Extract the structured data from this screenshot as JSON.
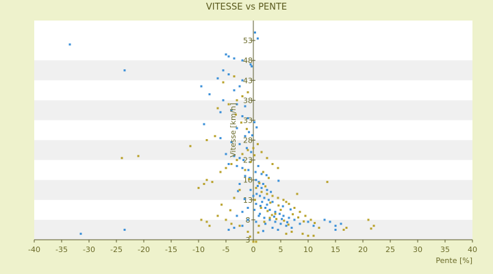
{
  "chart_data": {
    "type": "scatter",
    "title": "VITESSE vs PENTE",
    "xlabel": "Pente [%]",
    "ylabel": "Vitesse [km/h]",
    "xlim": [
      -40,
      40
    ],
    "ylim": [
      3,
      58
    ],
    "x_ticks": [
      "-40",
      "-35",
      "-30",
      "-25",
      "-20",
      "-15",
      "-10",
      "-5",
      "0",
      "5",
      "10",
      "15",
      "20",
      "25",
      "30",
      "35",
      "40"
    ],
    "y_ticks": [
      "3",
      "8",
      "13",
      "18",
      "23",
      "28",
      "33",
      "38",
      "43",
      "48",
      "53"
    ],
    "grid": "horizontal-bands",
    "legend": "none",
    "colors": {
      "series_a": "#3a8fd8",
      "series_b": "#b8a12a",
      "band": "#f0f0f0",
      "plot_bg": "#ffffff",
      "axis": "#5a5a2a"
    },
    "series": [
      {
        "color": "series_a",
        "points": [
          [
            -33.5,
            52
          ],
          [
            -23.5,
            45.5
          ],
          [
            -31.5,
            4.5
          ],
          [
            -23.5,
            5.5
          ],
          [
            -5,
            49.5
          ],
          [
            -4.5,
            49
          ],
          [
            -3.5,
            48.5
          ],
          [
            -2,
            48
          ],
          [
            -0.5,
            47
          ],
          [
            -0.3,
            46.5
          ],
          [
            0.3,
            55
          ],
          [
            0.8,
            53.5
          ],
          [
            -5.5,
            45.5
          ],
          [
            -4.5,
            44.5
          ],
          [
            -6.5,
            43.5
          ],
          [
            -2,
            43
          ],
          [
            -2.5,
            41.5
          ],
          [
            -3.5,
            40.5
          ],
          [
            -9.5,
            41.5
          ],
          [
            -8,
            39.5
          ],
          [
            -5.5,
            38
          ],
          [
            -3,
            37
          ],
          [
            -1.5,
            36.5
          ],
          [
            -4,
            35.5
          ],
          [
            -6,
            35
          ],
          [
            -2,
            34
          ],
          [
            -1,
            33.5
          ],
          [
            0.2,
            32.5
          ],
          [
            -9,
            32
          ],
          [
            -3,
            31
          ],
          [
            -0.8,
            30
          ],
          [
            -1.5,
            29
          ],
          [
            -6,
            28.5
          ],
          [
            -4,
            27.5
          ],
          [
            -2.5,
            27
          ],
          [
            -1.2,
            26
          ],
          [
            -0.4,
            25
          ],
          [
            -5,
            24.5
          ],
          [
            -3.5,
            24
          ],
          [
            -2.5,
            23.5
          ],
          [
            -1.8,
            23
          ],
          [
            -0.6,
            22.5
          ],
          [
            -4.5,
            22
          ],
          [
            -3,
            21.5
          ],
          [
            -2,
            21
          ],
          [
            -0.9,
            20.5
          ],
          [
            0.4,
            20
          ],
          [
            1.5,
            19.5
          ],
          [
            -1.5,
            19
          ],
          [
            -0.7,
            18.5
          ],
          [
            0.5,
            18
          ],
          [
            1,
            17.5
          ],
          [
            1.8,
            17
          ],
          [
            -2.5,
            17
          ],
          [
            0.8,
            16.5
          ],
          [
            1.5,
            16
          ],
          [
            2.5,
            15.5
          ],
          [
            3.2,
            15
          ],
          [
            0.6,
            14.5
          ],
          [
            1.2,
            14
          ],
          [
            2,
            13.5
          ],
          [
            2.8,
            13
          ],
          [
            3.5,
            12.5
          ],
          [
            0.5,
            12
          ],
          [
            1.3,
            11.5
          ],
          [
            2.2,
            11
          ],
          [
            3,
            10.5
          ],
          [
            4,
            10
          ],
          [
            4.8,
            9.5
          ],
          [
            5.5,
            9
          ],
          [
            6.5,
            8.5
          ],
          [
            7.5,
            8
          ],
          [
            1,
            9
          ],
          [
            2,
            8.5
          ],
          [
            3,
            8
          ],
          [
            4,
            7.5
          ],
          [
            5,
            7
          ],
          [
            6,
            6.5
          ],
          [
            3.5,
            6
          ],
          [
            4.5,
            5.5
          ],
          [
            8.5,
            7
          ],
          [
            10,
            7.5
          ],
          [
            11,
            6.5
          ],
          [
            13,
            8
          ],
          [
            14,
            7.5
          ],
          [
            15,
            6.5
          ],
          [
            16,
            7
          ],
          [
            15,
            5.5
          ],
          [
            -1,
            8
          ],
          [
            0.5,
            7.5
          ],
          [
            -2,
            6.5
          ],
          [
            -3.5,
            6
          ],
          [
            -4.5,
            5.5
          ],
          [
            -3,
            9
          ],
          [
            -2,
            10
          ],
          [
            -1,
            11
          ],
          [
            0.2,
            10.5
          ],
          [
            1.6,
            12.5
          ],
          [
            2.5,
            11.8
          ],
          [
            0,
            14
          ],
          [
            -0.5,
            15.5
          ],
          [
            1.2,
            9.5
          ],
          [
            3.8,
            8.8
          ],
          [
            5.2,
            8.2
          ],
          [
            2.2,
            7
          ],
          [
            6.2,
            7.4
          ],
          [
            7,
            6
          ],
          [
            1.8,
            5.2
          ],
          [
            -1.6,
            13.2
          ],
          [
            -2.8,
            15.2
          ],
          [
            0.9,
            21.5
          ],
          [
            2.4,
            19.2
          ],
          [
            4.6,
            17.8
          ],
          [
            5.4,
            11.4
          ],
          [
            6.8,
            10.6
          ],
          [
            -0.2,
            29.2
          ],
          [
            0.6,
            31.2
          ]
        ]
      },
      {
        "color": "series_b",
        "points": [
          [
            -24,
            23.5
          ],
          [
            -21,
            24
          ],
          [
            -11.5,
            26.5
          ],
          [
            -8.5,
            28
          ],
          [
            -7,
            29
          ],
          [
            -10,
            16
          ],
          [
            -9,
            17
          ],
          [
            -8.5,
            18
          ],
          [
            -7.5,
            17.5
          ],
          [
            -9.5,
            8
          ],
          [
            -8.5,
            7.5
          ],
          [
            -8,
            6.5
          ],
          [
            -6.5,
            9
          ],
          [
            -5,
            8
          ],
          [
            -4,
            7
          ],
          [
            -2.5,
            6.5
          ],
          [
            -1,
            5
          ],
          [
            0,
            2.5
          ],
          [
            0.5,
            2.5
          ],
          [
            -6,
            20
          ],
          [
            -5,
            21
          ],
          [
            -4,
            22
          ],
          [
            -3,
            23
          ],
          [
            -2,
            24.5
          ],
          [
            -1,
            25.5
          ],
          [
            0,
            26
          ],
          [
            0.8,
            27
          ],
          [
            1.5,
            25
          ],
          [
            2.5,
            23.5
          ],
          [
            3.5,
            22
          ],
          [
            4.5,
            21
          ],
          [
            -6.5,
            36
          ],
          [
            -4.5,
            37
          ],
          [
            -3,
            38
          ],
          [
            -2,
            39
          ],
          [
            -1,
            40
          ],
          [
            -5.5,
            42.5
          ],
          [
            -3.5,
            44
          ],
          [
            0.5,
            16
          ],
          [
            1.5,
            15
          ],
          [
            2.5,
            14.5
          ],
          [
            3.5,
            14
          ],
          [
            4.5,
            13.5
          ],
          [
            5.5,
            13
          ],
          [
            6.5,
            12
          ],
          [
            7.5,
            11
          ],
          [
            8.5,
            10
          ],
          [
            9.5,
            9
          ],
          [
            10.5,
            8
          ],
          [
            8,
            14.5
          ],
          [
            6,
            12.5
          ],
          [
            5,
            10.5
          ],
          [
            4,
            9.5
          ],
          [
            3,
            8.5
          ],
          [
            2,
            7.5
          ],
          [
            1,
            6.5
          ],
          [
            9,
            4.5
          ],
          [
            10,
            4
          ],
          [
            11,
            4
          ],
          [
            13.5,
            17.5
          ],
          [
            16.5,
            5.5
          ],
          [
            17,
            6
          ],
          [
            21,
            8
          ],
          [
            21.5,
            5.8
          ],
          [
            22,
            6.5
          ],
          [
            12,
            6
          ],
          [
            7,
            5
          ],
          [
            6,
            4.5
          ],
          [
            -0.5,
            22.5
          ],
          [
            -1.5,
            20.5
          ],
          [
            1.8,
            20
          ],
          [
            2.8,
            18.5
          ],
          [
            -2.5,
            15.5
          ],
          [
            -3.5,
            13.5
          ],
          [
            0.3,
            13
          ],
          [
            1.4,
            11
          ],
          [
            2.6,
            10.2
          ],
          [
            3.4,
            9.2
          ],
          [
            4.2,
            8.2
          ],
          [
            5.6,
            7.8
          ],
          [
            6.4,
            6.8
          ],
          [
            -4.2,
            10.4
          ],
          [
            -5.8,
            11.8
          ],
          [
            -2.2,
            32.4
          ],
          [
            -1.2,
            30.8
          ],
          [
            -3.2,
            34.4
          ],
          [
            0.2,
            24.2
          ],
          [
            -0.8,
            18.2
          ],
          [
            1.1,
            17.2
          ],
          [
            2.2,
            16.4
          ],
          [
            3.1,
            12.3
          ],
          [
            4.6,
            11.6
          ],
          [
            7.2,
            9.4
          ],
          [
            8.2,
            8.6
          ],
          [
            9.2,
            7.6
          ],
          [
            11.2,
            7.2
          ],
          [
            0.9,
            4.8
          ],
          [
            -0.6,
            3.8
          ]
        ]
      }
    ]
  }
}
